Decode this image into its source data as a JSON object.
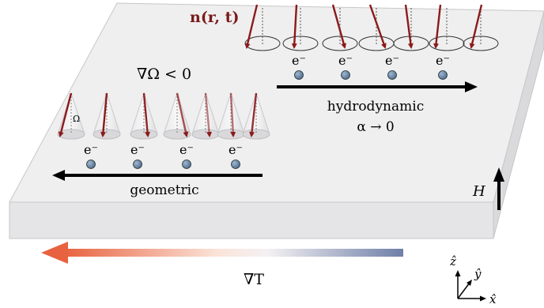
{
  "labels": {
    "magnetization": "n(r, t)",
    "electron": "e⁻",
    "omega_gradient": "∇Ω < 0",
    "omega": "Ω",
    "hydrodynamic": "hydrodynamic",
    "alpha_limit": "α → 0",
    "geometric": "geometric",
    "field": "H",
    "temperature_gradient": "∇T",
    "axis_z": "ẑ",
    "axis_y": "ŷ",
    "axis_x": "x̂"
  },
  "colors": {
    "spin_arrow": "#8b1a1a",
    "electron_fill": "#5b7a99",
    "slab_top": "#efeff0",
    "slab_side": "#e4e4e6",
    "gradient_hot": "#e8623f",
    "gradient_cold": "#6f7fa8"
  }
}
